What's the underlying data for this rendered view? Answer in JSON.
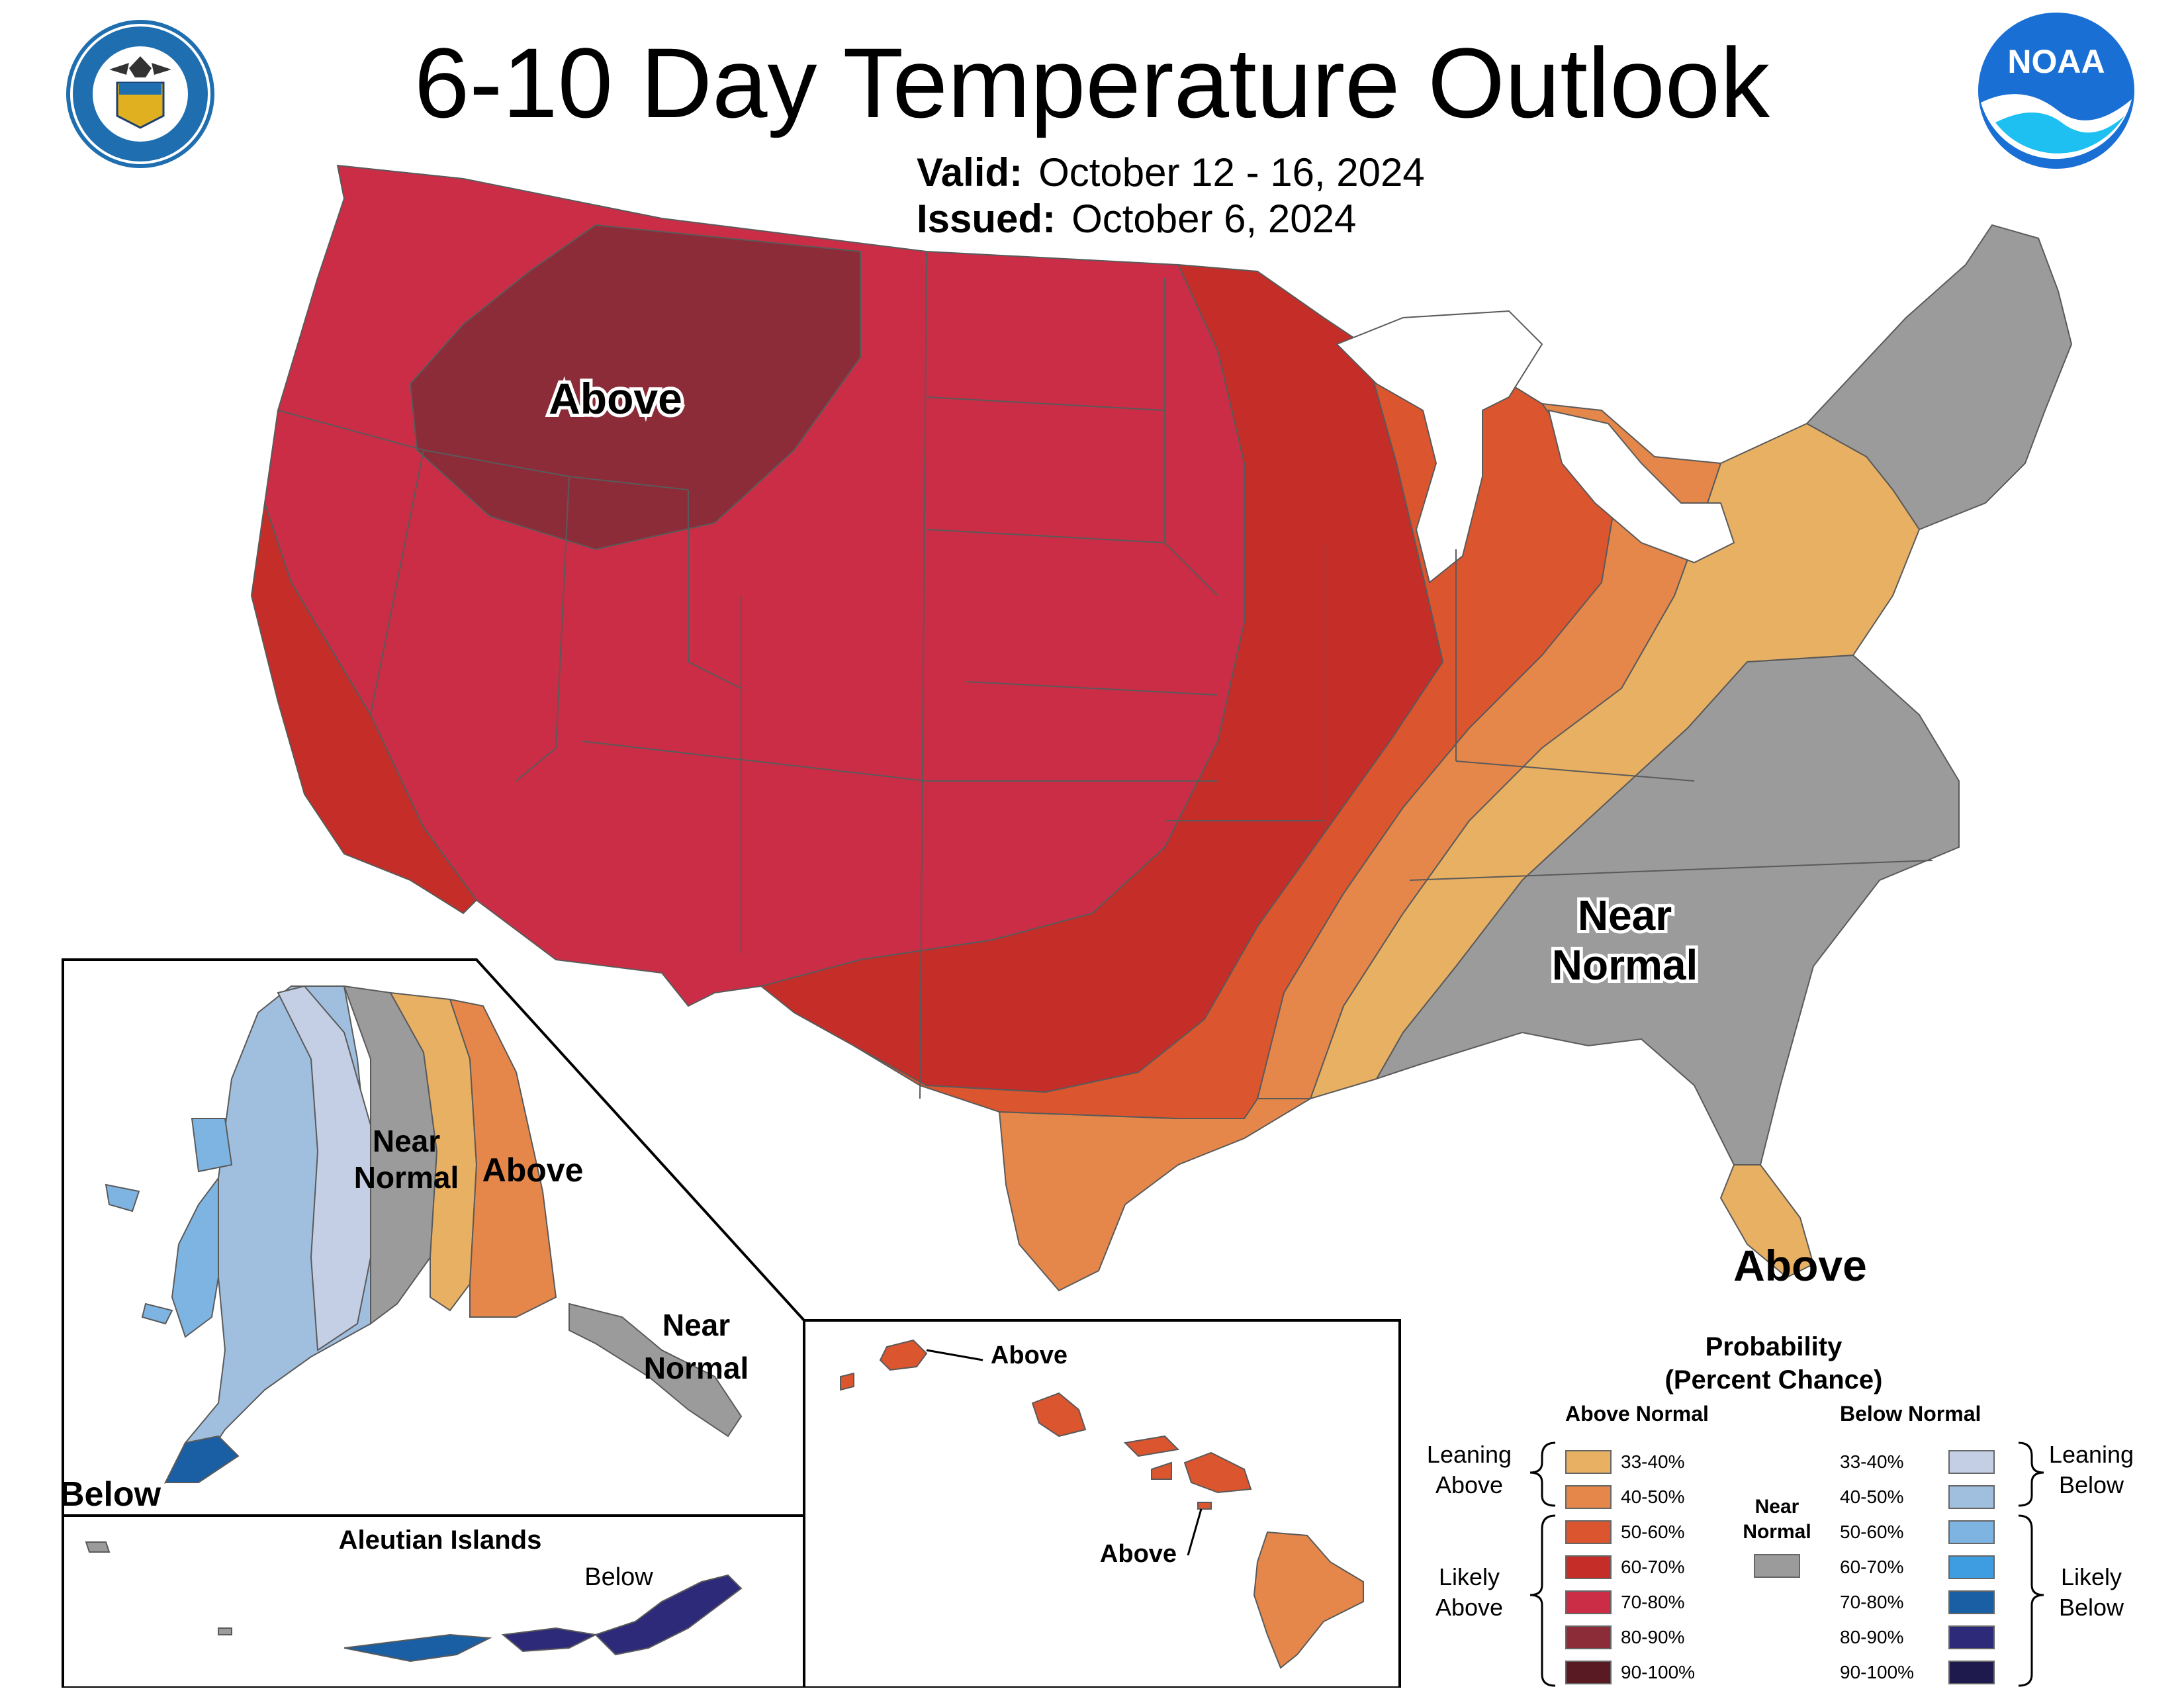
{
  "title": "6-10 Day Temperature Outlook",
  "valid": {
    "label": "Valid:",
    "value": "October 12 - 16, 2024"
  },
  "issued": {
    "label": "Issued:",
    "value": "October 6, 2024"
  },
  "logos": {
    "left": "doc-seal-icon",
    "right": "noaa-logo-icon"
  },
  "labels": {
    "conus_above_west": "Above",
    "conus_near_normal_1": "Near",
    "conus_near_normal_2": "Normal",
    "conus_above_fl": "Above",
    "ak_near_normal_1": "Near",
    "ak_near_normal_2": "Normal",
    "ak_above": "Above",
    "ak_se_near_1": "Near",
    "ak_se_near_2": "Normal",
    "ak_below": "Below",
    "aleutian_title": "Aleutian Islands",
    "aleutian_below": "Below",
    "hi_above_1": "Above",
    "hi_above_2": "Above"
  },
  "legend": {
    "title_1": "Probability",
    "title_2": "(Percent Chance)",
    "above_header": "Above Normal",
    "below_header": "Below Normal",
    "near_normal_1": "Near",
    "near_normal_2": "Normal",
    "near_normal_color": "#9b9b9b",
    "leaning_above_1": "Leaning",
    "leaning_above_2": "Above",
    "likely_above_1": "Likely",
    "likely_above_2": "Above",
    "leaning_below_1": "Leaning",
    "leaning_below_2": "Below",
    "likely_below_1": "Likely",
    "likely_below_2": "Below",
    "above": [
      {
        "range": "33-40%",
        "color": "#e8b063"
      },
      {
        "range": "40-50%",
        "color": "#e5874a"
      },
      {
        "range": "50-60%",
        "color": "#db552e"
      },
      {
        "range": "60-70%",
        "color": "#c42d28"
      },
      {
        "range": "70-80%",
        "color": "#cb2d46"
      },
      {
        "range": "80-90%",
        "color": "#8c2c39"
      },
      {
        "range": "90-100%",
        "color": "#5a1a24"
      }
    ],
    "below": [
      {
        "range": "33-40%",
        "color": "#c4cfe6"
      },
      {
        "range": "40-50%",
        "color": "#a0bede"
      },
      {
        "range": "50-60%",
        "color": "#7eb4e2"
      },
      {
        "range": "60-70%",
        "color": "#3d9de0"
      },
      {
        "range": "70-80%",
        "color": "#1a5fa3"
      },
      {
        "range": "80-90%",
        "color": "#2e2a7a"
      },
      {
        "range": "90-100%",
        "color": "#1e1a4e"
      }
    ]
  }
}
